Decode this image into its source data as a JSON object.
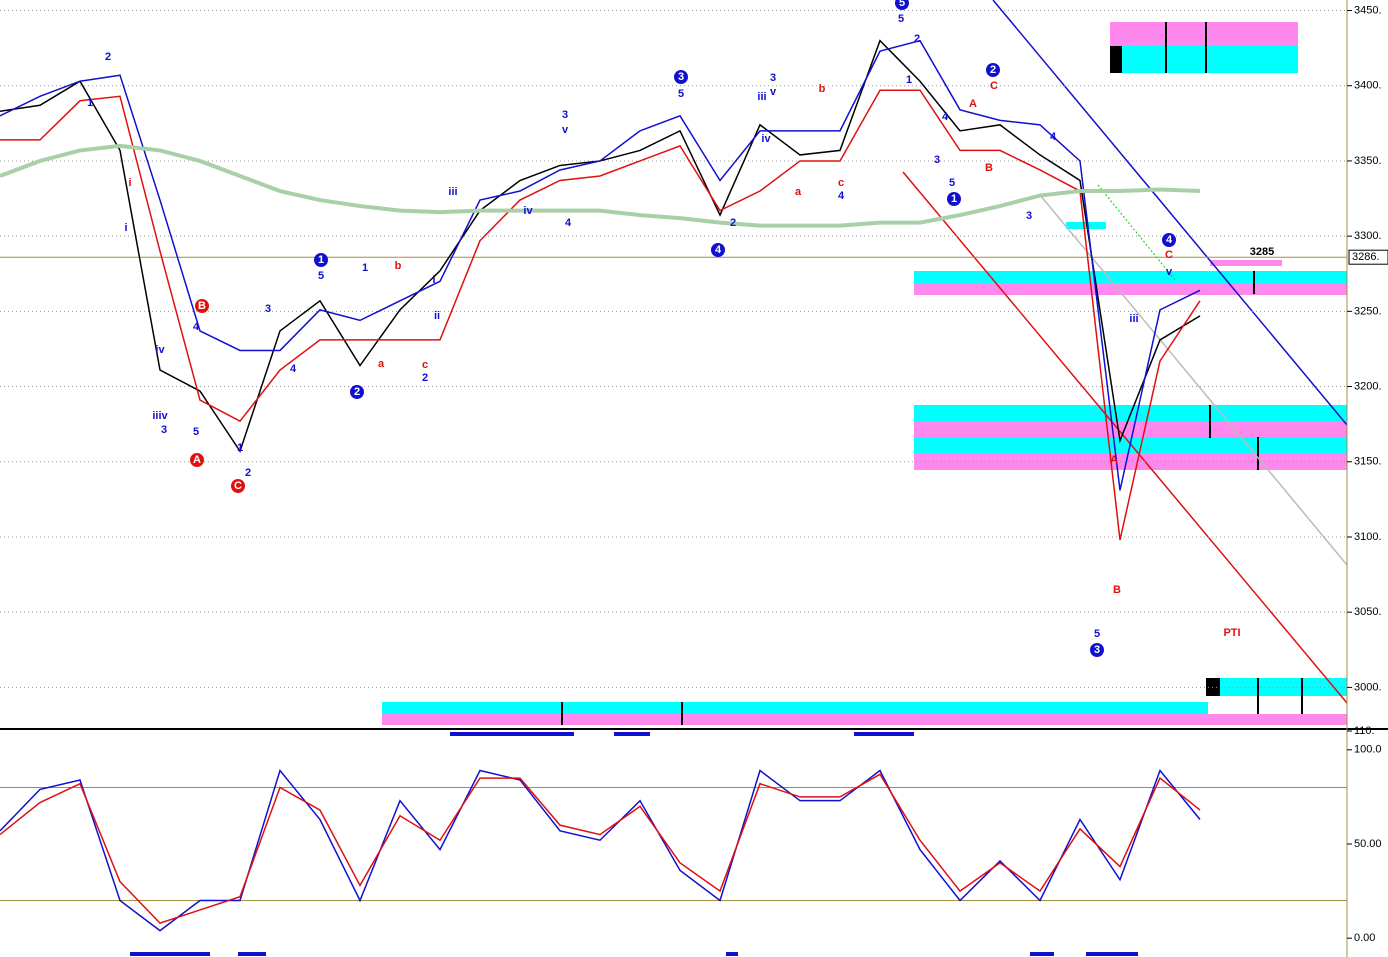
{
  "chart_data": [
    {
      "type": "line",
      "series": [
        {
          "name": "close",
          "color": "#000000",
          "values": [
            3383,
            3387,
            3403,
            3357,
            3211,
            3197,
            3157,
            3237,
            3257,
            3214,
            3251,
            3277,
            3317,
            3337,
            3347,
            3350,
            3357,
            3370,
            3314,
            3374,
            3354,
            3357,
            3430,
            3403,
            3370,
            3374,
            3354,
            3337,
            3164,
            3231,
            3247
          ]
        },
        {
          "name": "upper",
          "color": "#1010d0",
          "values": [
            3380,
            3393,
            3403,
            3407,
            3324,
            3237,
            3224,
            3224,
            3251,
            3244,
            3257,
            3270,
            3324,
            3330,
            3344,
            3350,
            3370,
            3380,
            3337,
            3370,
            3370,
            3370,
            3423,
            3430,
            3384,
            3377,
            3374,
            3350,
            3131,
            3251,
            3264
          ]
        },
        {
          "name": "lower",
          "color": "#e01010",
          "values": [
            3364,
            3364,
            3390,
            3393,
            3290,
            3191,
            3177,
            3211,
            3231,
            3231,
            3231,
            3231,
            3297,
            3324,
            3337,
            3340,
            3350,
            3360,
            3317,
            3330,
            3350,
            3350,
            3397,
            3397,
            3357,
            3357,
            3344,
            3330,
            3098,
            3217,
            3257
          ]
        },
        {
          "name": "ma",
          "color": "#a8d0a8",
          "values": [
            3340,
            3350,
            3357,
            3360,
            3357,
            3350,
            3340,
            3330,
            3324,
            3320,
            3317,
            3316,
            3317,
            3317,
            3317,
            3317,
            3314,
            3312,
            3309,
            3307,
            3307,
            3307,
            3309,
            3309,
            3314,
            3320,
            3327,
            3330,
            3330,
            3331,
            3330
          ]
        }
      ],
      "ylim": [
        2973,
        3457
      ],
      "yticks": [
        {
          "value": 3000,
          "label": "3000."
        },
        {
          "value": 3050,
          "label": "3050."
        },
        {
          "value": 3100,
          "label": "3100."
        },
        {
          "value": 3150,
          "label": "3150."
        },
        {
          "value": 3200,
          "label": "3200."
        },
        {
          "value": 3250,
          "label": "3250."
        },
        {
          "value": 3300,
          "label": "3300."
        },
        {
          "value": 3350,
          "label": "3350."
        },
        {
          "value": 3400,
          "label": "3400."
        },
        {
          "value": 3450,
          "label": "3450."
        }
      ],
      "last_price": {
        "value": 3286,
        "label": "3286."
      },
      "grid": true,
      "wave_labels": [
        "2",
        "1",
        "i",
        "i",
        "B",
        "4",
        "iv",
        "iiiv",
        "3",
        "5",
        "A",
        "C",
        "1",
        "2",
        "3",
        "4",
        "1",
        "5",
        "2",
        "1",
        "b",
        "a",
        "c",
        "2",
        "i",
        "ii",
        "iii",
        "iv",
        "3",
        "v",
        "4",
        "3",
        "5",
        "4",
        "2",
        "3",
        "v",
        "iii",
        "iv",
        "b",
        "a",
        "c",
        "4",
        "5",
        "5",
        "2",
        "1",
        "2",
        "C",
        "A",
        "4",
        "3",
        "5",
        "1",
        "B",
        "3",
        "4",
        "4",
        "C",
        "v",
        "iii",
        "A",
        "B",
        "5",
        "3",
        "3285",
        "PTI"
      ]
    },
    {
      "type": "line",
      "series": [
        {
          "name": "%K",
          "color": "#1010d0",
          "values": [
            57,
            79,
            84,
            20,
            4,
            20,
            20,
            89,
            63,
            20,
            73,
            47,
            89,
            84,
            57,
            52,
            73,
            36,
            20,
            89,
            73,
            73,
            89,
            47,
            20,
            41,
            20,
            63,
            31,
            89,
            63
          ]
        },
        {
          "name": "%D",
          "color": "#e01010",
          "values": [
            55,
            72,
            82,
            30,
            8,
            15,
            22,
            80,
            68,
            28,
            65,
            52,
            85,
            85,
            60,
            55,
            70,
            40,
            25,
            82,
            75,
            75,
            87,
            52,
            25,
            40,
            25,
            58,
            38,
            85,
            68
          ]
        }
      ],
      "ylim": [
        -10,
        110
      ],
      "yticks": [
        {
          "value": 0,
          "label": "0.00"
        },
        {
          "value": 50,
          "label": "50.00"
        },
        {
          "value": 100,
          "label": "100.0"
        },
        {
          "value": 110,
          "label": "110."
        }
      ],
      "levels": [
        20,
        80
      ]
    }
  ]
}
